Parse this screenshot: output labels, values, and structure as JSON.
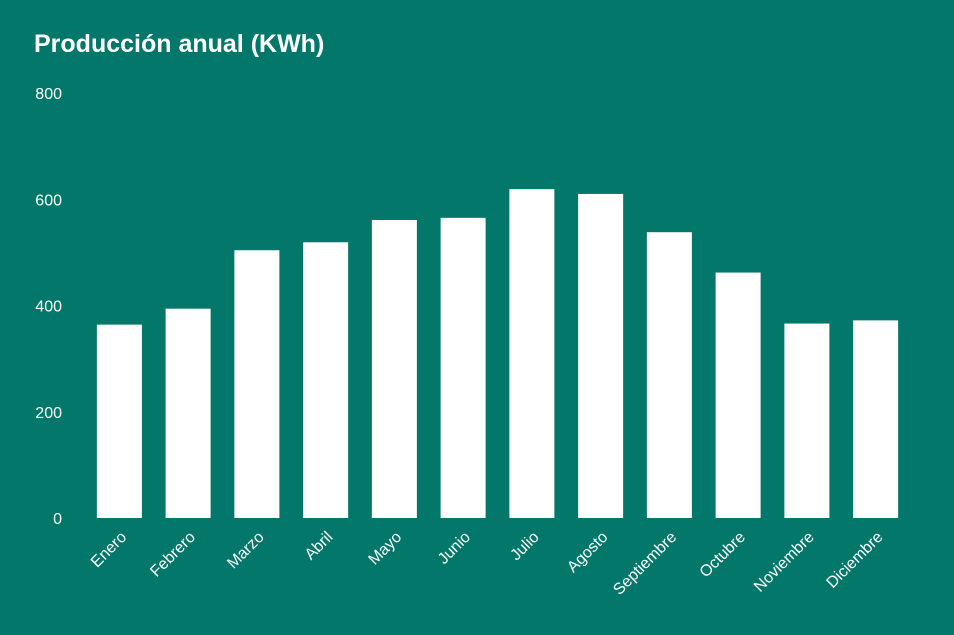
{
  "chart_data": {
    "type": "bar",
    "title": "Producción anual (KWh)",
    "xlabel": "",
    "ylabel": "",
    "categories": [
      "Enero",
      "Febrero",
      "Marzo",
      "Abril",
      "Mayo",
      "Junio",
      "Julio",
      "Agosto",
      "Septiembre",
      "Octubre",
      "Noviembre",
      "Diciembre"
    ],
    "values": [
      364,
      394,
      504,
      519,
      561,
      565,
      619,
      610,
      538,
      462,
      366,
      372
    ],
    "ylim": [
      0,
      800
    ],
    "yticks": [
      0,
      200,
      400,
      600,
      800
    ],
    "grid": false,
    "legend": "none",
    "colors": {
      "background": "#03786a",
      "bar": "#ffffff",
      "text": "#ffffff"
    }
  }
}
